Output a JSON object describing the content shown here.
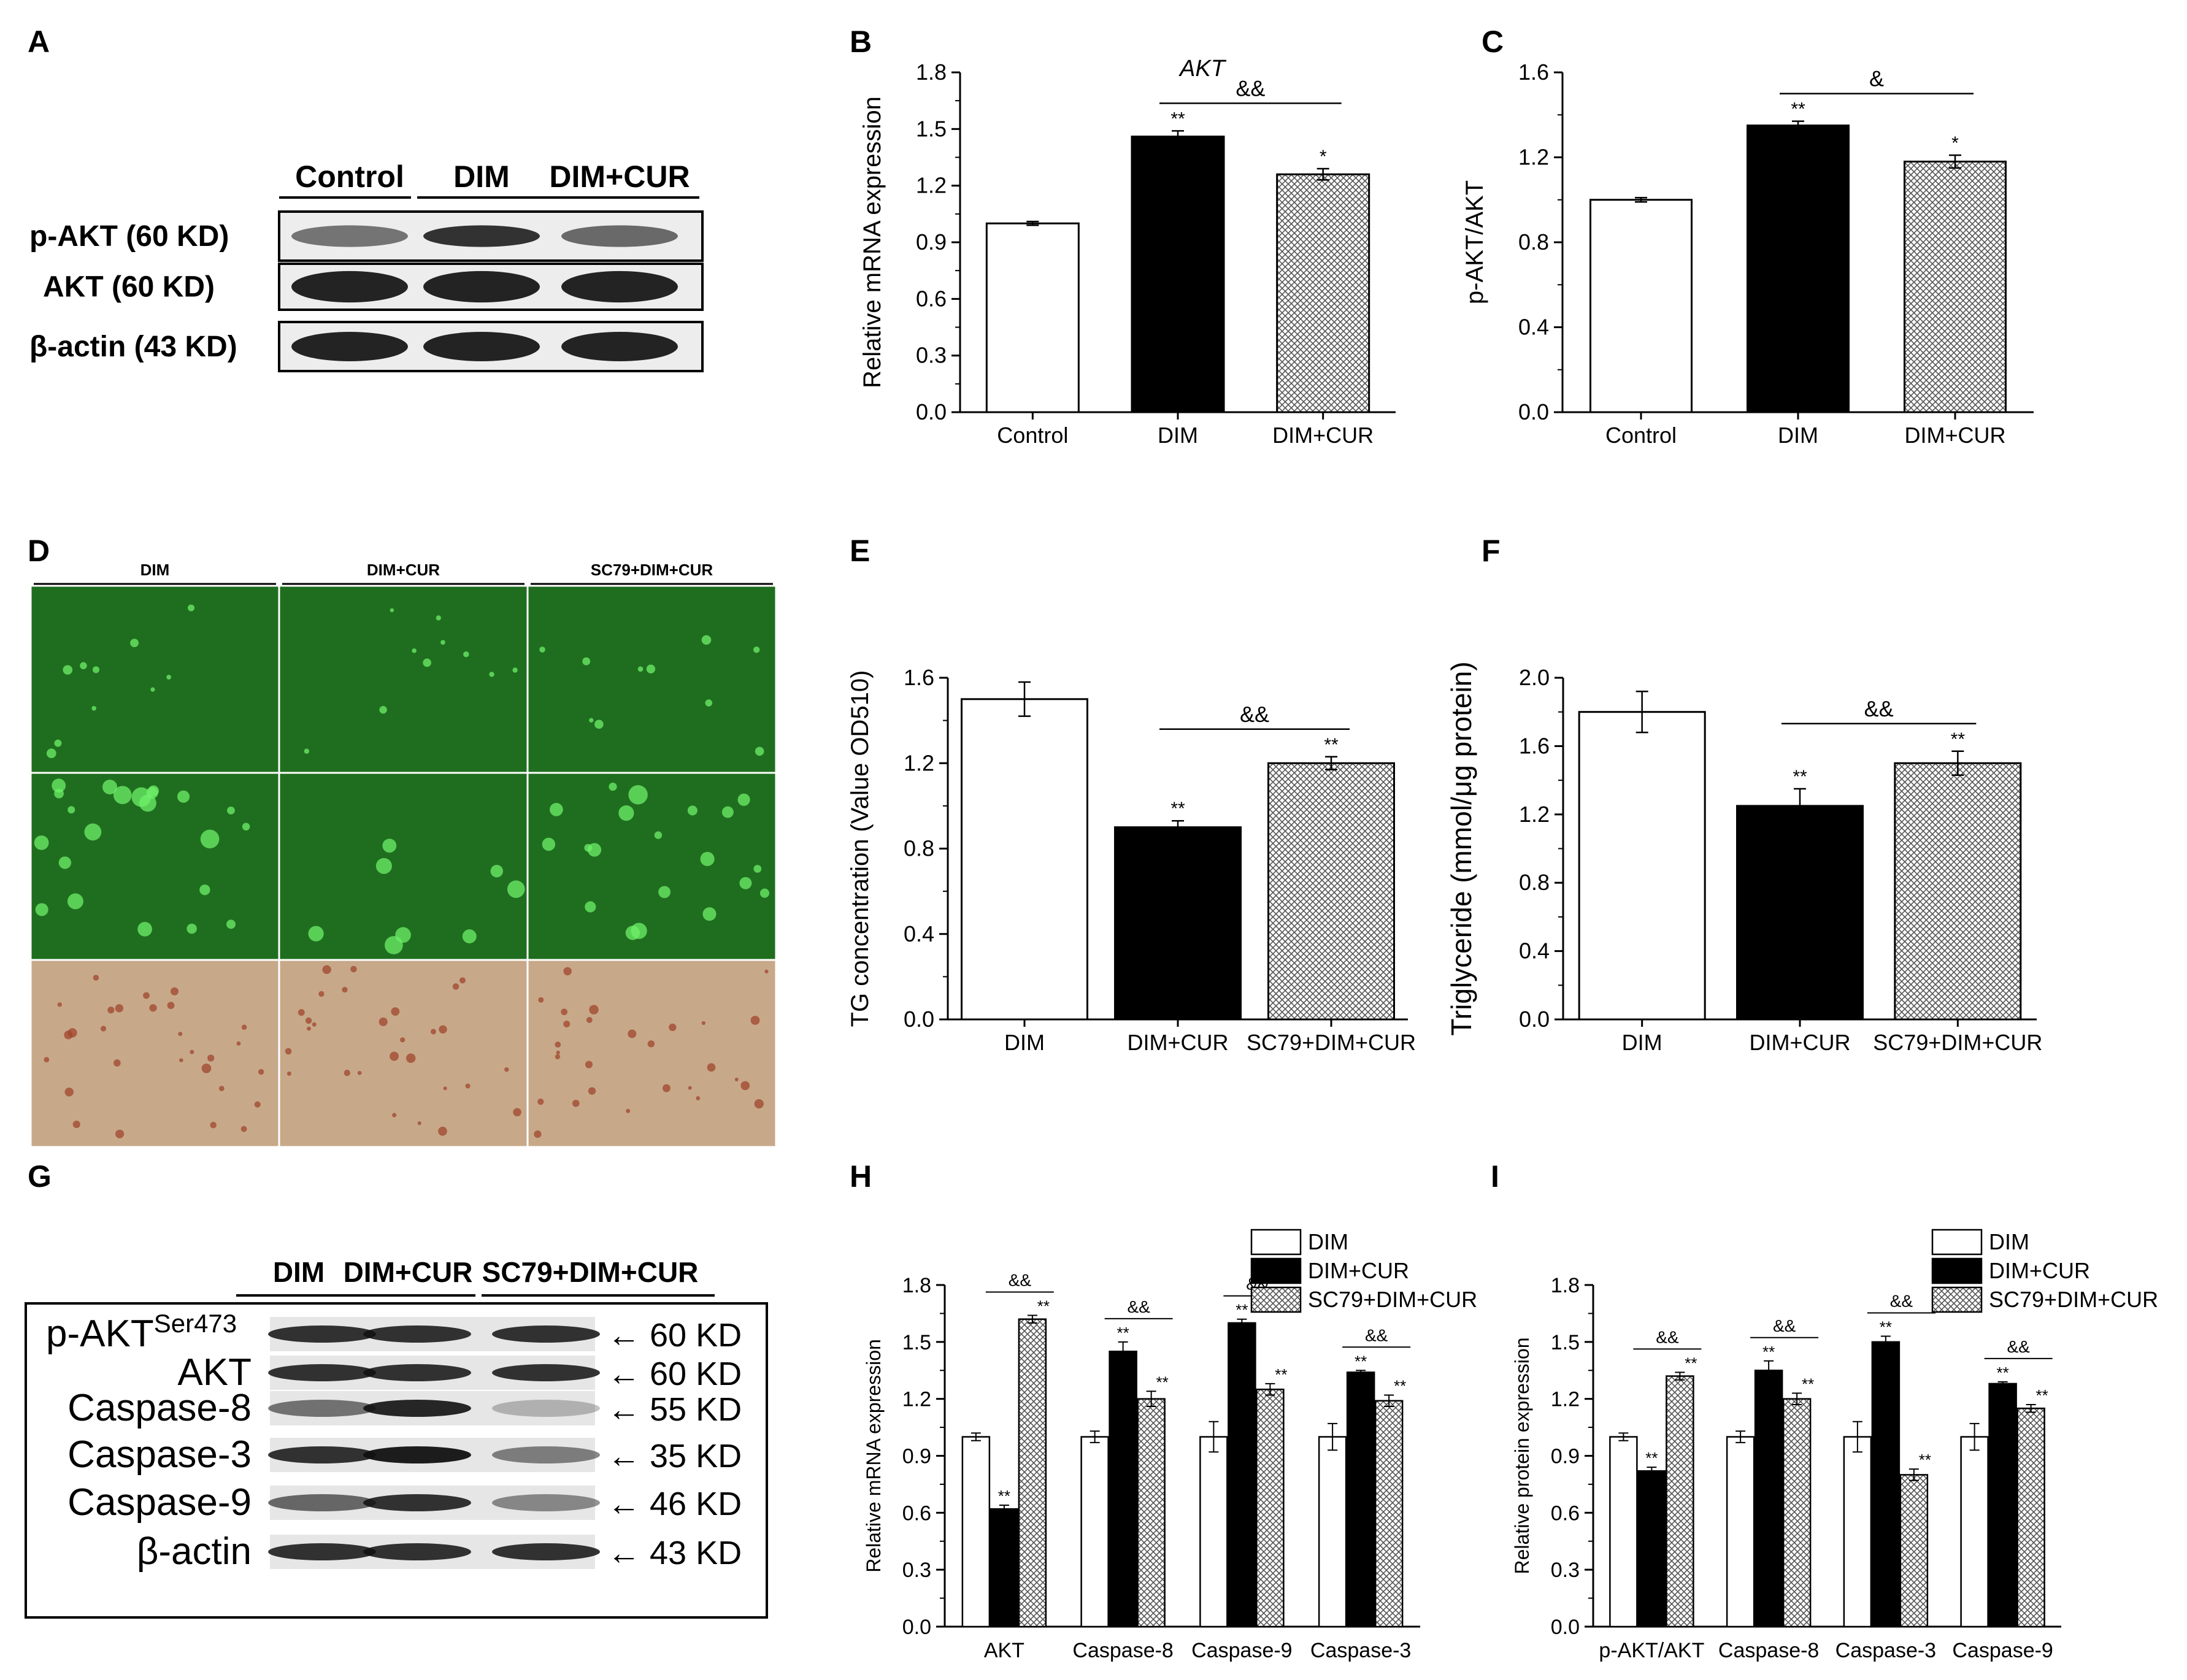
{
  "panel_letters": [
    "A",
    "B",
    "C",
    "D",
    "E",
    "F",
    "G",
    "H",
    "I"
  ],
  "colors": {
    "bar_white": "#ffffff",
    "bar_black": "#000000",
    "bar_hatch": "#bdbdbd",
    "axis": "#000000",
    "micro_green": "#1f6e1f",
    "micro_green_spot": "#6ff06a",
    "micro_stain": "#c7a98a",
    "micro_stain_spot": "#a0452c"
  },
  "western_a": {
    "headers": [
      "Control",
      "DIM",
      "DIM+CUR"
    ],
    "rows": [
      "p-AKT (60 KD)",
      "AKT (60 KD)",
      "β-actin (43 KD)"
    ]
  },
  "micrographs_d": {
    "headers": [
      "DIM",
      "DIM+CUR",
      "SC79+DIM+CUR"
    ],
    "rows": [
      "green",
      "green-spots",
      "stain"
    ]
  },
  "western_g": {
    "headers": [
      "DIM",
      "DIM+CUR",
      "SC79+DIM+CUR"
    ],
    "rows": [
      {
        "label": "p-AKT",
        "sup": "Ser473",
        "size": "← 60 KD"
      },
      {
        "label": "AKT",
        "sup": "",
        "size": "← 60 KD"
      },
      {
        "label": "Caspase-8",
        "sup": "",
        "size": "← 55 KD"
      },
      {
        "label": "Caspase-3",
        "sup": "",
        "size": "← 35 KD"
      },
      {
        "label": "Caspase-9",
        "sup": "",
        "size": "← 46 KD"
      },
      {
        "label": "β-actin",
        "sup": "",
        "size": "← 43 KD"
      }
    ]
  },
  "chart_data": [
    {
      "panel": "B",
      "type": "bar",
      "title": "AKT",
      "ylabel": "Relative mRNA expression",
      "xlabel": "",
      "categories": [
        "Control",
        "DIM",
        "DIM+CUR"
      ],
      "values": [
        1.0,
        1.46,
        1.26
      ],
      "errors": [
        0.01,
        0.03,
        0.03
      ],
      "annotations": [
        "",
        "**",
        "*"
      ],
      "fills": [
        "white",
        "black",
        "hatch"
      ],
      "ylim": [
        0,
        1.8
      ],
      "yticks": [
        "0.0",
        "0.3",
        "0.6",
        "0.9",
        "1.2",
        "1.5",
        "1.8"
      ],
      "brackets": [
        {
          "from": 1,
          "to": 2,
          "label": "&&"
        }
      ]
    },
    {
      "panel": "C",
      "type": "bar",
      "title": "",
      "ylabel": "p-AKT/AKT",
      "xlabel": "",
      "categories": [
        "Control",
        "DIM",
        "DIM+CUR"
      ],
      "values": [
        1.0,
        1.35,
        1.18
      ],
      "errors": [
        0.01,
        0.02,
        0.03
      ],
      "annotations": [
        "",
        "**",
        "*"
      ],
      "fills": [
        "white",
        "black",
        "hatch"
      ],
      "ylim": [
        0,
        1.6
      ],
      "yticks": [
        "0.0",
        "0.4",
        "0.8",
        "1.2",
        "1.6"
      ],
      "brackets": [
        {
          "from": 1,
          "to": 2,
          "label": "&"
        }
      ]
    },
    {
      "panel": "E",
      "type": "bar",
      "title": "",
      "ylabel": "TG concentration (Value OD510)",
      "xlabel": "",
      "categories": [
        "DIM",
        "DIM+CUR",
        "SC79+DIM+CUR"
      ],
      "values": [
        1.5,
        0.9,
        1.2
      ],
      "errors": [
        0.08,
        0.03,
        0.03
      ],
      "annotations": [
        "",
        "**",
        "**"
      ],
      "fills": [
        "white",
        "black",
        "hatch"
      ],
      "ylim": [
        0,
        1.6
      ],
      "yticks": [
        "0.0",
        "0.4",
        "0.8",
        "1.2",
        "1.6"
      ],
      "brackets": [
        {
          "from": 1,
          "to": 2,
          "label": "&&"
        }
      ]
    },
    {
      "panel": "F",
      "type": "bar",
      "title": "",
      "ylabel": "Triglyceride (mmol/μg protein)",
      "xlabel": "",
      "categories": [
        "DIM",
        "DIM+CUR",
        "SC79+DIM+CUR"
      ],
      "values": [
        1.8,
        1.25,
        1.5
      ],
      "errors": [
        0.12,
        0.1,
        0.07
      ],
      "annotations": [
        "",
        "**",
        "**"
      ],
      "fills": [
        "white",
        "black",
        "hatch"
      ],
      "ylim": [
        0,
        2.0
      ],
      "yticks": [
        "0.0",
        "0.4",
        "0.8",
        "1.2",
        "1.6",
        "2.0"
      ],
      "brackets": [
        {
          "from": 1,
          "to": 2,
          "label": "&&"
        }
      ]
    },
    {
      "panel": "H",
      "type": "bar",
      "title": "",
      "ylabel": "Relative mRNA expression",
      "xlabel": "",
      "categories": [
        "AKT",
        "Caspase-8",
        "Caspase-9",
        "Caspase-3"
      ],
      "series": [
        {
          "name": "DIM",
          "values": [
            1.0,
            1.0,
            1.0,
            1.0
          ],
          "errors": [
            0.02,
            0.03,
            0.08,
            0.07
          ],
          "annotations": [
            "",
            "",
            "",
            ""
          ]
        },
        {
          "name": "DIM+CUR",
          "values": [
            0.62,
            1.45,
            1.6,
            1.34
          ],
          "errors": [
            0.02,
            0.05,
            0.02,
            0.01
          ],
          "annotations": [
            "**",
            "**",
            "**",
            "**"
          ]
        },
        {
          "name": "SC79+DIM+CUR",
          "values": [
            1.62,
            1.2,
            1.25,
            1.19
          ],
          "errors": [
            0.02,
            0.04,
            0.03,
            0.03
          ],
          "annotations": [
            "**",
            "**",
            "**",
            "**"
          ]
        }
      ],
      "legend": "top-right",
      "ylim": [
        0,
        1.8
      ],
      "yticks": [
        "0.0",
        "0.3",
        "0.6",
        "0.9",
        "1.2",
        "1.5",
        "1.8"
      ],
      "brackets": [
        {
          "group": 0,
          "from": 1,
          "to": 2,
          "label": "&&"
        },
        {
          "group": 1,
          "from": 1,
          "to": 2,
          "label": "&&"
        },
        {
          "group": 2,
          "from": 1,
          "to": 2,
          "label": "&&"
        },
        {
          "group": 3,
          "from": 1,
          "to": 2,
          "label": "&&"
        }
      ]
    },
    {
      "panel": "I",
      "type": "bar",
      "title": "",
      "ylabel": "Relative protein expression",
      "xlabel": "",
      "categories": [
        "p-AKT/AKT",
        "Caspase-8",
        "Caspase-3",
        "Caspase-9"
      ],
      "series": [
        {
          "name": "DIM",
          "values": [
            1.0,
            1.0,
            1.0,
            1.0
          ],
          "errors": [
            0.02,
            0.03,
            0.08,
            0.07
          ],
          "annotations": [
            "",
            "",
            "",
            ""
          ]
        },
        {
          "name": "DIM+CUR",
          "values": [
            0.82,
            1.35,
            1.5,
            1.28
          ],
          "errors": [
            0.02,
            0.05,
            0.03,
            0.01
          ],
          "annotations": [
            "**",
            "**",
            "**",
            "**"
          ]
        },
        {
          "name": "SC79+DIM+CUR",
          "values": [
            1.32,
            1.2,
            0.8,
            1.15
          ],
          "errors": [
            0.02,
            0.03,
            0.03,
            0.02
          ],
          "annotations": [
            "**",
            "**",
            "**",
            "**"
          ]
        }
      ],
      "legend": "top-right",
      "ylim": [
        0,
        1.8
      ],
      "yticks": [
        "0.0",
        "0.3",
        "0.6",
        "0.9",
        "1.2",
        "1.5",
        "1.8"
      ],
      "brackets": [
        {
          "group": 0,
          "from": 1,
          "to": 2,
          "label": "&&"
        },
        {
          "group": 1,
          "from": 1,
          "to": 2,
          "label": "&&"
        },
        {
          "group": 2,
          "from": 1,
          "to": 2,
          "label": "&&"
        },
        {
          "group": 3,
          "from": 1,
          "to": 2,
          "label": "&&"
        }
      ]
    }
  ]
}
